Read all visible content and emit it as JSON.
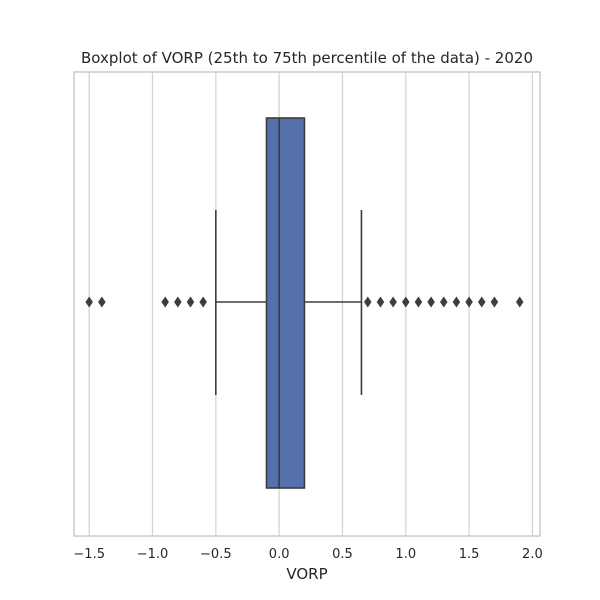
{
  "chart_data": {
    "type": "box",
    "title": "Boxplot of VORP (25th to 75th percentile of the data) - 2020",
    "xlabel": "VORP",
    "ylabel": "",
    "orientation": "horizontal",
    "xlim": [
      -1.62,
      2.06
    ],
    "xticks": [
      -1.5,
      -1.0,
      -0.5,
      0.0,
      0.5,
      1.0,
      1.5,
      2.0
    ],
    "xtick_labels": [
      "−1.5",
      "−1.0",
      "−0.5",
      "0.0",
      "0.5",
      "1.0",
      "1.5",
      "2.0"
    ],
    "grid": "vertical",
    "box": {
      "whisker_low": -0.5,
      "q1": -0.1,
      "median": 0.0,
      "q3": 0.2,
      "whisker_high": 0.65
    },
    "outliers": [
      -1.5,
      -1.4,
      -0.9,
      -0.8,
      -0.7,
      -0.6,
      0.7,
      0.8,
      0.9,
      1.0,
      1.1,
      1.2,
      1.3,
      1.4,
      1.5,
      1.6,
      1.7,
      1.9
    ],
    "colors": {
      "box_fill": "#5471ab",
      "line": "#3d3d3d",
      "grid": "#d4d4d4",
      "frame": "#cccccc"
    }
  }
}
